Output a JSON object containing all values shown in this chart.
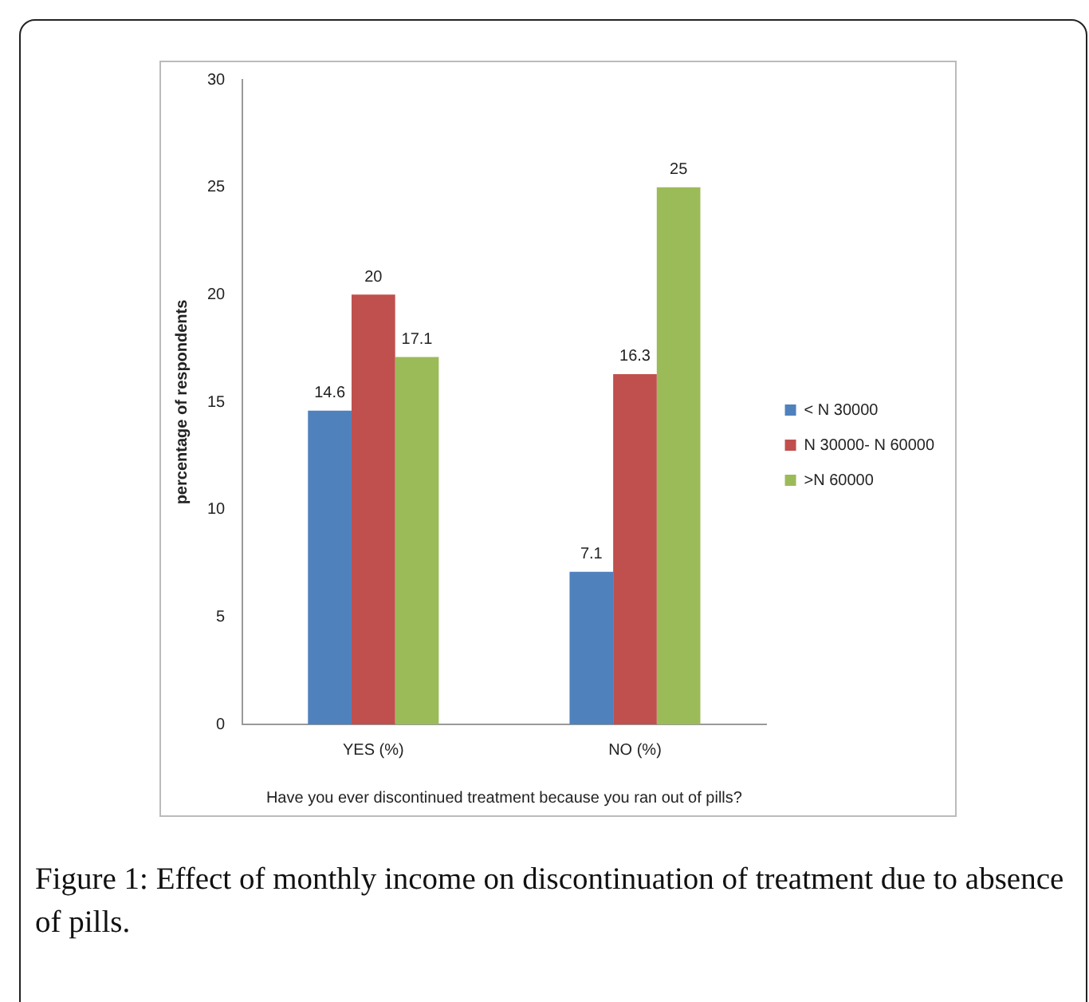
{
  "chart_data": {
    "type": "bar",
    "xlabel": "Have you ever discontinued treatment because you ran out of pills?",
    "ylabel": "percentage of respondents",
    "categories": [
      "YES (%)",
      "NO (%)"
    ],
    "series": [
      {
        "name": "< N 30000",
        "color": "#4f81bd",
        "values": [
          14.6,
          7.1
        ]
      },
      {
        "name": "N 30000- N 60000",
        "color": "#c0504d",
        "values": [
          20,
          16.3
        ]
      },
      {
        "name": ">N 60000",
        "color": "#9bbb59",
        "values": [
          17.1,
          25
        ]
      }
    ],
    "ylim": [
      0,
      30
    ],
    "yticks": [
      0,
      5,
      10,
      15,
      20,
      25,
      30
    ],
    "grid": false,
    "legend": "right",
    "data_labels": true,
    "annotations": [
      "Figure 1: Effect of monthly income on discontinuation of treatment due to absence of pills."
    ]
  }
}
